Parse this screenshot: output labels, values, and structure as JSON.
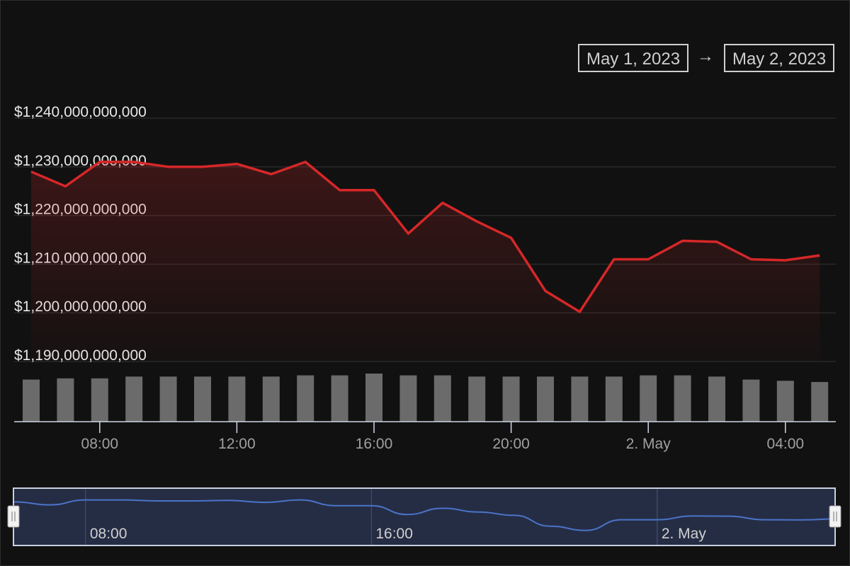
{
  "range_selector": {
    "from": "May 1, 2023",
    "arrow": "→",
    "to": "May 2, 2023"
  },
  "colors": {
    "line": "#d62728",
    "volume": "#6b6b6b",
    "navigator_line": "#4a74c9",
    "grid": "#2c2c2c"
  },
  "chart_data": {
    "type": "line",
    "x": [
      "2023-05-01 06:00",
      "2023-05-01 07:00",
      "2023-05-01 08:00",
      "2023-05-01 09:00",
      "2023-05-01 10:00",
      "2023-05-01 11:00",
      "2023-05-01 12:00",
      "2023-05-01 13:00",
      "2023-05-01 14:00",
      "2023-05-01 15:00",
      "2023-05-01 16:00",
      "2023-05-01 17:00",
      "2023-05-01 18:00",
      "2023-05-01 19:00",
      "2023-05-01 20:00",
      "2023-05-01 21:00",
      "2023-05-01 22:00",
      "2023-05-01 23:00",
      "2023-05-02 00:00",
      "2023-05-02 01:00",
      "2023-05-02 02:00",
      "2023-05-02 03:00",
      "2023-05-02 04:00",
      "2023-05-02 05:00"
    ],
    "series": [
      {
        "values": [
          1229000000000,
          1226000000000,
          1231000000000,
          1231000000000,
          1230000000000,
          1230000000000,
          1230600000000,
          1228500000000,
          1231000000000,
          1225200000000,
          1225200000000,
          1216300000000,
          1222600000000,
          1218800000000,
          1215400000000,
          1204500000000,
          1200200000000,
          1211000000000,
          1211000000000,
          1214800000000,
          1214600000000,
          1211000000000,
          1210800000000,
          1211800000000
        ]
      }
    ],
    "volume": [
      0.7,
      0.72,
      0.72,
      0.75,
      0.75,
      0.75,
      0.75,
      0.75,
      0.77,
      0.77,
      0.8,
      0.77,
      0.77,
      0.75,
      0.75,
      0.75,
      0.75,
      0.75,
      0.77,
      0.77,
      0.75,
      0.7,
      0.68,
      0.66
    ],
    "yticks": [
      "$1,240,000,000,000",
      "$1,230,000,000,000",
      "$1,220,000,000,000",
      "$1,210,000,000,000",
      "$1,200,000,000,000",
      "$1,190,000,000,000"
    ],
    "ylim": [
      1190000000000,
      1240000000000
    ],
    "xticks": [
      {
        "label": "08:00",
        "at": "2023-05-01 08:00"
      },
      {
        "label": "12:00",
        "at": "2023-05-01 12:00"
      },
      {
        "label": "16:00",
        "at": "2023-05-01 16:00"
      },
      {
        "label": "20:00",
        "at": "2023-05-01 20:00"
      },
      {
        "label": "2. May",
        "at": "2023-05-02 00:00"
      },
      {
        "label": "04:00",
        "at": "2023-05-02 04:00"
      }
    ],
    "navigator": {
      "labels": [
        {
          "label": "08:00",
          "at": "2023-05-01 08:00"
        },
        {
          "label": "16:00",
          "at": "2023-05-01 16:00"
        },
        {
          "label": "2. May",
          "at": "2023-05-02 00:00"
        }
      ]
    },
    "grid": true,
    "legend": "none"
  }
}
